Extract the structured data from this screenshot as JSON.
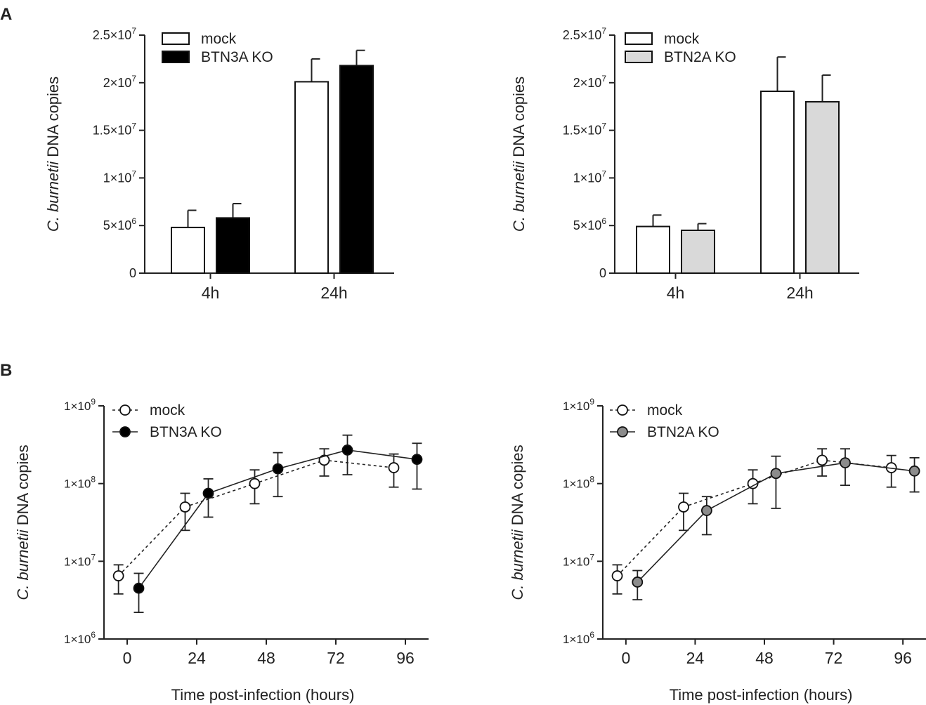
{
  "panels": {
    "a": "A",
    "b": "B"
  },
  "chart_data": [
    {
      "id": "A-left",
      "type": "bar",
      "panel": "A",
      "ylabel": {
        "italic": "C. burnetii",
        "rest": " DNA copies"
      },
      "ylim": [
        0,
        25000000
      ],
      "yticks": [
        {
          "value": 0,
          "mant": "0",
          "exp": ""
        },
        {
          "value": 5000000,
          "mant": "5×10",
          "exp": "6"
        },
        {
          "value": 10000000,
          "mant": "1×10",
          "exp": "7"
        },
        {
          "value": 15000000,
          "mant": "1.5×10",
          "exp": "7"
        },
        {
          "value": 20000000,
          "mant": "2×10",
          "exp": "7"
        },
        {
          "value": 25000000,
          "mant": "2.5×10",
          "exp": "7"
        }
      ],
      "categories": [
        "4h",
        "24h"
      ],
      "series": [
        {
          "name": "mock",
          "fill": "#ffffff",
          "values": [
            4800000,
            20100000
          ],
          "errors": [
            1800000,
            2400000
          ]
        },
        {
          "name": "BTN3A KO",
          "fill": "#000000",
          "values": [
            5800000,
            21800000
          ],
          "errors": [
            1500000,
            1600000
          ]
        }
      ],
      "legend": "top-left"
    },
    {
      "id": "A-right",
      "type": "bar",
      "panel": "A",
      "ylabel": {
        "italic": "C. burnetii",
        "rest": " DNA copies"
      },
      "ylim": [
        0,
        25000000
      ],
      "yticks": [
        {
          "value": 0,
          "mant": "0",
          "exp": ""
        },
        {
          "value": 5000000,
          "mant": "5×10",
          "exp": "6"
        },
        {
          "value": 10000000,
          "mant": "1×10",
          "exp": "7"
        },
        {
          "value": 15000000,
          "mant": "1.5×10",
          "exp": "7"
        },
        {
          "value": 20000000,
          "mant": "2×10",
          "exp": "7"
        },
        {
          "value": 25000000,
          "mant": "2.5×10",
          "exp": "7"
        }
      ],
      "categories": [
        "4h",
        "24h"
      ],
      "series": [
        {
          "name": "mock",
          "fill": "#ffffff",
          "values": [
            4900000,
            19100000
          ],
          "errors": [
            1200000,
            3600000
          ]
        },
        {
          "name": "BTN2A KO",
          "fill": "#d9d9d9",
          "values": [
            4500000,
            18000000
          ],
          "errors": [
            700000,
            2800000
          ]
        }
      ],
      "legend": "top-left"
    },
    {
      "id": "B-left",
      "type": "line",
      "panel": "B",
      "yscale": "log",
      "ylabel": {
        "italic": "C. burnetii",
        "rest": " DNA copies"
      },
      "xlabel": "Time post-infection (hours)",
      "xlim": [
        -8,
        104
      ],
      "xticks": [
        0,
        24,
        48,
        72,
        96
      ],
      "ylim_log10": [
        6,
        9
      ],
      "yticks": [
        {
          "log": 6,
          "mant": "1×10",
          "exp": "6"
        },
        {
          "log": 7,
          "mant": "1×10",
          "exp": "7"
        },
        {
          "log": 8,
          "mant": "1×10",
          "exp": "8"
        },
        {
          "log": 9,
          "mant": "1×10",
          "exp": "9"
        }
      ],
      "series": [
        {
          "name": "mock",
          "marker_fill": "#ffffff",
          "dashed": true,
          "points": [
            {
              "x": -3,
              "y": 6500000,
              "lo": 3800000,
              "hi": 9000000
            },
            {
              "x": 20,
              "y": 50000000,
              "lo": 25000000,
              "hi": 75000000
            },
            {
              "x": 44,
              "y": 100000000,
              "lo": 55000000,
              "hi": 150000000
            },
            {
              "x": 68,
              "y": 200000000,
              "lo": 125000000,
              "hi": 280000000
            },
            {
              "x": 92,
              "y": 160000000,
              "lo": 90000000,
              "hi": 240000000
            }
          ]
        },
        {
          "name": "BTN3A KO",
          "marker_fill": "#000000",
          "dashed": false,
          "points": [
            {
              "x": 4,
              "y": 4500000,
              "lo": 2200000,
              "hi": 7000000
            },
            {
              "x": 28,
              "y": 75000000,
              "lo": 37000000,
              "hi": 115000000
            },
            {
              "x": 52,
              "y": 155000000,
              "lo": 68000000,
              "hi": 250000000
            },
            {
              "x": 76,
              "y": 270000000,
              "lo": 130000000,
              "hi": 420000000
            },
            {
              "x": 100,
              "y": 205000000,
              "lo": 85000000,
              "hi": 330000000
            }
          ]
        }
      ],
      "legend": "top-left"
    },
    {
      "id": "B-right",
      "type": "line",
      "panel": "B",
      "yscale": "log",
      "ylabel": {
        "italic": "C. burnetii",
        "rest": " DNA copies"
      },
      "xlabel": "Time post-infection (hours)",
      "xlim": [
        -8,
        104
      ],
      "xticks": [
        0,
        24,
        48,
        72,
        96
      ],
      "ylim_log10": [
        6,
        9
      ],
      "yticks": [
        {
          "log": 6,
          "mant": "1×10",
          "exp": "6"
        },
        {
          "log": 7,
          "mant": "1×10",
          "exp": "7"
        },
        {
          "log": 8,
          "mant": "1×10",
          "exp": "8"
        },
        {
          "log": 9,
          "mant": "1×10",
          "exp": "9"
        }
      ],
      "series": [
        {
          "name": "mock",
          "marker_fill": "#ffffff",
          "dashed": true,
          "points": [
            {
              "x": -3,
              "y": 6500000,
              "lo": 3800000,
              "hi": 9000000
            },
            {
              "x": 20,
              "y": 50000000,
              "lo": 25000000,
              "hi": 75000000
            },
            {
              "x": 44,
              "y": 100000000,
              "lo": 55000000,
              "hi": 150000000
            },
            {
              "x": 68,
              "y": 200000000,
              "lo": 125000000,
              "hi": 280000000
            },
            {
              "x": 92,
              "y": 160000000,
              "lo": 90000000,
              "hi": 230000000
            }
          ]
        },
        {
          "name": "BTN2A KO",
          "marker_fill": "#8c8c8c",
          "dashed": false,
          "points": [
            {
              "x": 4,
              "y": 5400000,
              "lo": 3200000,
              "hi": 7600000
            },
            {
              "x": 28,
              "y": 45000000,
              "lo": 22000000,
              "hi": 68000000
            },
            {
              "x": 52,
              "y": 135000000,
              "lo": 48000000,
              "hi": 225000000
            },
            {
              "x": 76,
              "y": 185000000,
              "lo": 95000000,
              "hi": 280000000
            },
            {
              "x": 100,
              "y": 145000000,
              "lo": 78000000,
              "hi": 215000000
            }
          ]
        }
      ],
      "legend": "top-left"
    }
  ]
}
